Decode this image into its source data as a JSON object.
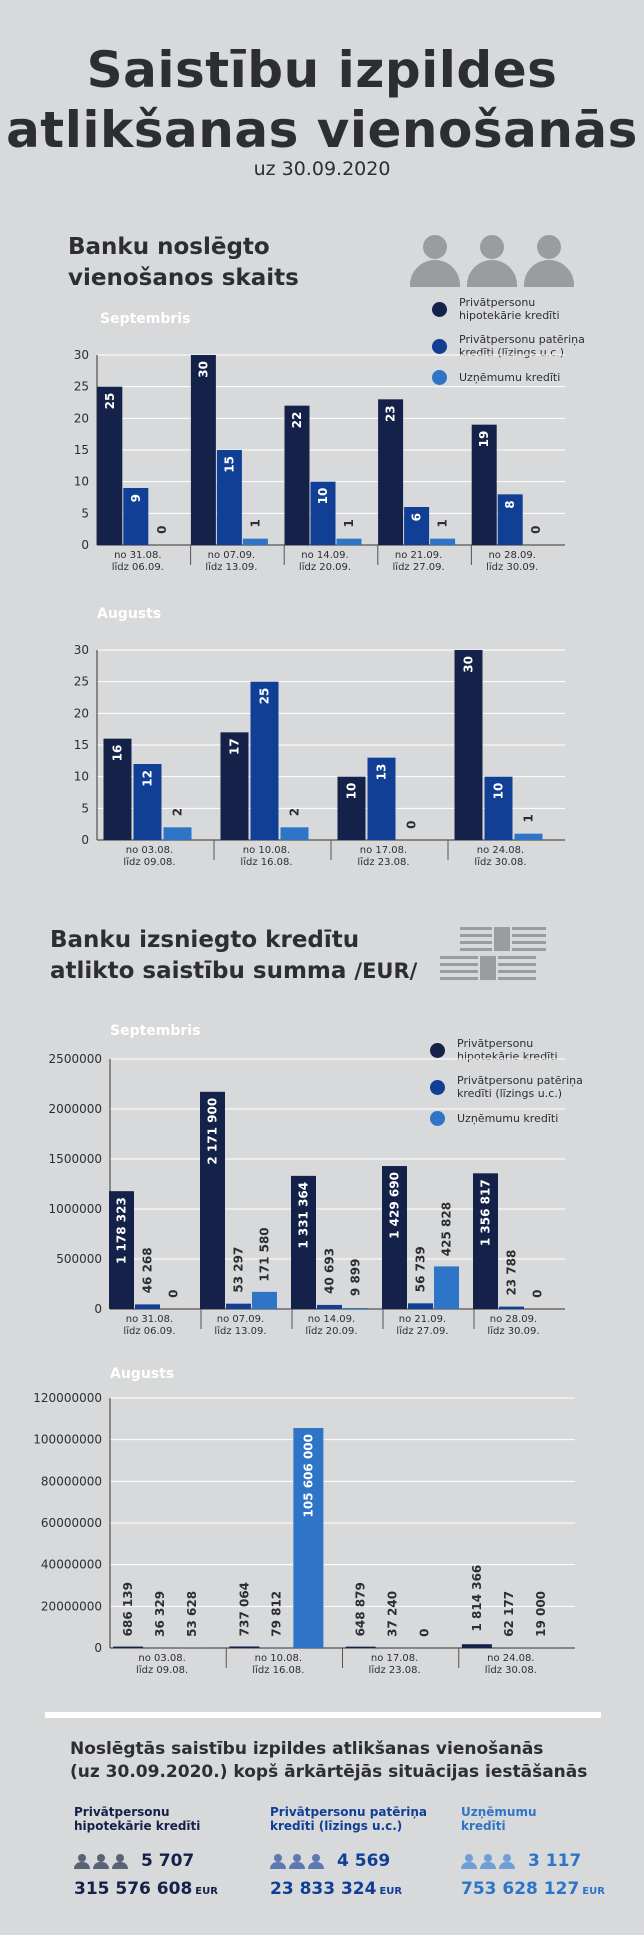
{
  "header": {
    "title_line1": "Saistību izpildes",
    "title_line2": "atlikšanas vienošanās",
    "subtitle": "uz 30.09.2020"
  },
  "section1": {
    "title_line1": "Banku noslēgto",
    "title_line2": "vienošanos skaits",
    "icon": "people-group-icon"
  },
  "section2": {
    "title_line1": "Banku izsniegto kredītu",
    "title_line2": "atlikto saistību summa",
    "title_unit": "/EUR/",
    "icon": "newspaper-icon"
  },
  "legend": {
    "series1_line1": "Privātpersonu",
    "series1_line2": "hipotekārie kredīti",
    "series2_line1": "Privātpersonu patēriņa",
    "series2_line2": "kredīti (līzings u.c.)",
    "series3": "Uzņēmumu kredīti"
  },
  "colors": {
    "series1": "#14224a",
    "series2": "#103f95",
    "series3": "#2e75c7"
  },
  "chart_data": [
    {
      "type": "bar",
      "title": "Septembris",
      "categories": [
        [
          "no 31.08.",
          "līdz 06.09."
        ],
        [
          "no 07.09.",
          "līdz 13.09."
        ],
        [
          "no 14.09.",
          "līdz 20.09."
        ],
        [
          "no 21.09.",
          "līdz 27.09."
        ],
        [
          "no 28.09.",
          "līdz 30.09."
        ]
      ],
      "series": [
        {
          "name": "Privātpersonu hipotekārie kredīti",
          "values": [
            25,
            30,
            22,
            23,
            19
          ],
          "labels": [
            "25",
            "30",
            "22",
            "23",
            "19"
          ]
        },
        {
          "name": "Privātpersonu patēriņa kredīti (līzings u.c.)",
          "values": [
            9,
            15,
            10,
            6,
            8
          ],
          "labels": [
            "9",
            "15",
            "10",
            "6",
            "8"
          ]
        },
        {
          "name": "Uzņēmumu kredīti",
          "values": [
            0,
            1,
            1,
            1,
            0
          ],
          "labels": [
            "0",
            "1",
            "1",
            "1",
            "0"
          ]
        }
      ],
      "yticks": [
        "0",
        "5",
        "10",
        "15",
        "20",
        "25",
        "30"
      ],
      "ylim": [
        0,
        30
      ],
      "legend": "top-right",
      "grid": true
    },
    {
      "type": "bar",
      "title": "Augusts",
      "categories": [
        [
          "no 03.08.",
          "līdz 09.08."
        ],
        [
          "no 10.08.",
          "līdz 16.08."
        ],
        [
          "no 17.08.",
          "līdz 23.08."
        ],
        [
          "no 24.08.",
          "līdz 30.08."
        ]
      ],
      "series": [
        {
          "name": "Privātpersonu hipotekārie kredīti",
          "values": [
            16,
            17,
            10,
            30
          ],
          "labels": [
            "16",
            "17",
            "10",
            "30"
          ]
        },
        {
          "name": "Privātpersonu patēriņa kredīti (līzings u.c.)",
          "values": [
            12,
            25,
            13,
            10
          ],
          "labels": [
            "12",
            "25",
            "13",
            "10"
          ]
        },
        {
          "name": "Uzņēmumu kredīti",
          "values": [
            2,
            2,
            0,
            1
          ],
          "labels": [
            "2",
            "2",
            "0",
            "1"
          ]
        }
      ],
      "yticks": [
        "0",
        "5",
        "10",
        "15",
        "20",
        "25",
        "30"
      ],
      "ylim": [
        0,
        30
      ],
      "grid": true
    },
    {
      "type": "bar",
      "title": "Septembris",
      "categories": [
        [
          "no 31.08.",
          "līdz 06.09."
        ],
        [
          "no 07.09.",
          "līdz 13.09."
        ],
        [
          "no 14.09.",
          "līdz 20.09."
        ],
        [
          "no 21.09.",
          "līdz 27.09."
        ],
        [
          "no 28.09.",
          "līdz 30.09."
        ]
      ],
      "series": [
        {
          "name": "Privātpersonu hipotekārie kredīti",
          "values": [
            1178323,
            2171900,
            1331364,
            1429690,
            1356817
          ],
          "labels": [
            "1 178 323",
            "2 171 900",
            "1 331 364",
            "1 429 690",
            "1 356 817"
          ]
        },
        {
          "name": "Privātpersonu patēriņa kredīti (līzings u.c.)",
          "values": [
            46268,
            53297,
            40693,
            56739,
            23788
          ],
          "labels": [
            "46 268",
            "53 297",
            "40 693",
            "56 739",
            "23 788"
          ]
        },
        {
          "name": "Uzņēmumu kredīti",
          "values": [
            0,
            171580,
            9899,
            425828,
            0
          ],
          "labels": [
            "0",
            "171 580",
            "9 899",
            "425 828",
            "0"
          ]
        }
      ],
      "yticks": [
        "0",
        "500000",
        "1000000",
        "1500000",
        "2000000",
        "2500000"
      ],
      "ylim": [
        0,
        2500000
      ],
      "legend": "top-right",
      "grid": true
    },
    {
      "type": "bar",
      "title": "Augusts",
      "categories": [
        [
          "no 03.08.",
          "līdz 09.08."
        ],
        [
          "no 10.08.",
          "līdz 16.08."
        ],
        [
          "no 17.08.",
          "līdz 23.08."
        ],
        [
          "no 24.08.",
          "līdz 30.08."
        ]
      ],
      "series": [
        {
          "name": "Privātpersonu hipotekārie kredīti",
          "values": [
            686139,
            737064,
            648879,
            1814366
          ],
          "labels": [
            "686 139",
            "737 064",
            "648 879",
            "1 814 366"
          ]
        },
        {
          "name": "Privātpersonu patēriņa kredīti (līzings u.c.)",
          "values": [
            36329,
            79812,
            37240,
            62177
          ],
          "labels": [
            "36 329",
            "79 812",
            "37 240",
            "62 177"
          ]
        },
        {
          "name": "Uzņēmumu kredīti",
          "values": [
            53628,
            105606000,
            0,
            19000
          ],
          "labels": [
            "53 628",
            "105 606 000",
            "0",
            "19 000"
          ]
        }
      ],
      "yticks": [
        "0",
        "20000000",
        "40000000",
        "60000000",
        "80000000",
        "100000000",
        "120000000"
      ],
      "ylim": [
        0,
        120000000
      ],
      "grid": true
    }
  ],
  "summary": {
    "title_line1": "Noslēgtās saistību izpildes atlikšanas vienošanās",
    "title_line2": "(uz 30.09.2020.) kopš ārkārtējās situācijas iestāšanās",
    "items": [
      {
        "label_line1": "Privātpersonu",
        "label_line2": "hipotekārie kredīti",
        "count": "5 707",
        "amount": "315 576 608",
        "currency": "EUR",
        "color": "#14224a"
      },
      {
        "label_line1": "Privātpersonu patēriņa",
        "label_line2": "kredīti (līzings u.c.)",
        "count": "4 569",
        "amount": "23 833 324",
        "currency": "EUR",
        "color": "#103f95"
      },
      {
        "label_line1": "Uzņēmumu",
        "label_line2": "kredīti",
        "count": "3 117",
        "amount": "753 628 127",
        "currency": "EUR",
        "color": "#2e75c7"
      }
    ]
  }
}
